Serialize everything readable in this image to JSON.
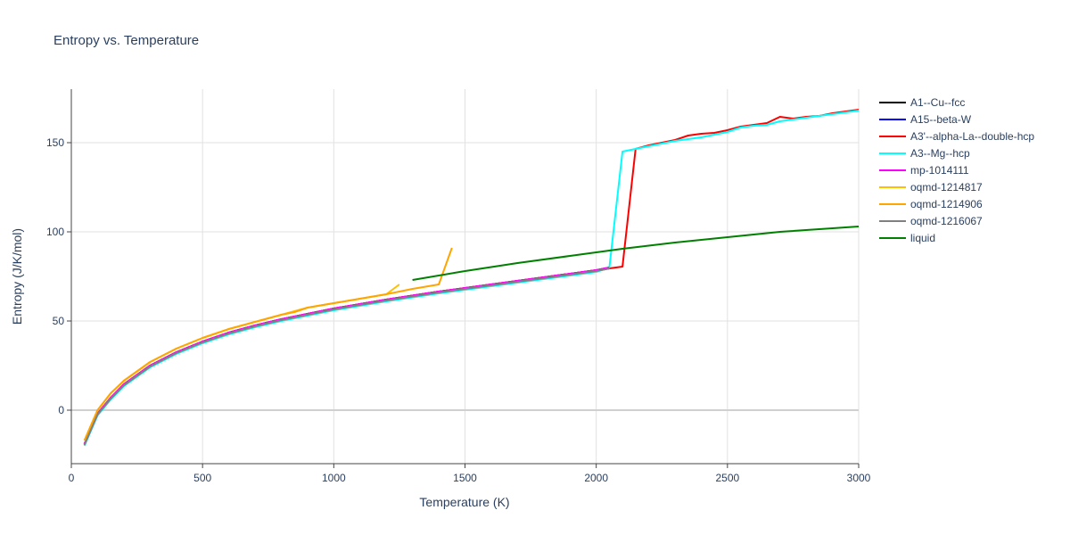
{
  "chart_data": {
    "type": "line",
    "title": "Entropy vs. Temperature",
    "xlabel": "Temperature (K)",
    "ylabel": "Entropy (J/K/mol)",
    "xlim": [
      0,
      3000
    ],
    "ylim": [
      -30,
      180
    ],
    "xticks": [
      0,
      500,
      1000,
      1500,
      2000,
      2500,
      3000
    ],
    "yticks": [
      0,
      50,
      100,
      150
    ],
    "grid": true,
    "legend_position": "right",
    "series": [
      {
        "name": "A1--Cu--fcc",
        "color": "#000000",
        "x": [
          50,
          100,
          150,
          200,
          300,
          400,
          500,
          600,
          700,
          800,
          900,
          1000,
          1200,
          1400,
          1600,
          1800,
          2000,
          2050
        ],
        "y": [
          -19,
          -2,
          7,
          14.5,
          25,
          32.5,
          38.5,
          43.5,
          47.5,
          51,
          54,
          57,
          62,
          66.5,
          70.5,
          74.5,
          78.5,
          80
        ]
      },
      {
        "name": "A15--beta-W",
        "color": "#0000ff",
        "x": [
          50,
          100,
          150,
          200,
          300,
          400,
          500,
          600,
          700,
          800,
          900,
          1000,
          1200,
          1400,
          1600,
          1800,
          2000,
          2050
        ],
        "y": [
          -19.5,
          -2.5,
          6.5,
          14,
          24.5,
          32,
          38,
          43,
          47,
          50.5,
          53.5,
          56.5,
          61.5,
          66,
          70,
          74,
          78,
          79.5
        ]
      },
      {
        "name": "A3'--alpha-La--double-hcp",
        "color": "#ff0000",
        "x": [
          50,
          100,
          150,
          200,
          300,
          400,
          500,
          600,
          700,
          800,
          900,
          1000,
          1200,
          1400,
          1600,
          1800,
          2000,
          2100,
          2150,
          2200,
          2250,
          2300,
          2350,
          2400,
          2450,
          2500,
          2550,
          2600,
          2650,
          2700,
          2750,
          2800,
          2850,
          2900,
          2950,
          3000
        ],
        "y": [
          -19,
          -2,
          7,
          14.5,
          25,
          32.5,
          38.5,
          43.5,
          47.5,
          51,
          54,
          57,
          62,
          66.5,
          70.5,
          74.5,
          78.5,
          80.5,
          146.5,
          148.5,
          150,
          151.5,
          154,
          155,
          155.5,
          157,
          159,
          160,
          161,
          164.5,
          163.5,
          164.5,
          165,
          166.5,
          167.5,
          168.5
        ]
      },
      {
        "name": "A3--Mg--hcp",
        "color": "#00ffff",
        "x": [
          50,
          100,
          150,
          200,
          300,
          400,
          500,
          600,
          700,
          800,
          900,
          1000,
          1200,
          1400,
          1600,
          1800,
          2000,
          2050,
          2100,
          2150,
          2200,
          2250,
          2300,
          2350,
          2400,
          2450,
          2500,
          2550,
          2600,
          2650,
          2700,
          2750,
          2800,
          2850,
          2900,
          2950,
          3000
        ],
        "y": [
          -20,
          -3,
          6,
          13.5,
          24,
          31.5,
          37.5,
          42.5,
          46.5,
          50,
          53,
          56,
          61,
          65.5,
          69.5,
          73.5,
          77.5,
          80,
          145,
          146.5,
          148,
          149.5,
          151,
          152,
          153,
          154.5,
          156,
          158.5,
          159.5,
          160,
          162,
          163,
          164,
          165,
          166,
          167,
          168
        ]
      },
      {
        "name": "mp-1014111",
        "color": "#ff00ff",
        "x": [
          50,
          100,
          150,
          200,
          300,
          400,
          500,
          600,
          700,
          800,
          900,
          1000,
          1200,
          1400,
          1600,
          1800,
          2000,
          2050
        ],
        "y": [
          -19,
          -2,
          7,
          14.5,
          25,
          32.5,
          38.5,
          43.5,
          47.5,
          51,
          54,
          57,
          62,
          66.5,
          70.5,
          74.5,
          78.5,
          80
        ]
      },
      {
        "name": "oqmd-1214817",
        "color": "#ffbf00",
        "x": [
          50,
          100,
          150,
          200,
          300,
          400,
          500,
          600,
          700,
          800,
          900,
          1000,
          1100,
          1200,
          1250
        ],
        "y": [
          -17,
          0,
          9.5,
          16.5,
          27,
          34.5,
          40.5,
          45.5,
          49.5,
          53.5,
          57.5,
          60,
          62.5,
          65,
          70.5
        ]
      },
      {
        "name": "oqmd-1214906",
        "color": "#ffa500",
        "x": [
          50,
          100,
          150,
          200,
          300,
          400,
          500,
          600,
          700,
          800,
          850,
          900,
          1000,
          1100,
          1200,
          1300,
          1400,
          1450
        ],
        "y": [
          -17,
          0,
          9.5,
          16.5,
          27,
          34.5,
          40.5,
          45.5,
          49.5,
          53.5,
          55,
          57.5,
          60,
          62.5,
          65,
          68,
          70.5,
          91
        ]
      },
      {
        "name": "oqmd-1216067",
        "color": "#808080",
        "x": [
          50,
          100,
          150,
          200,
          300,
          400,
          500,
          600,
          700,
          800,
          900,
          1000,
          1200,
          1400,
          1600,
          1800,
          2000,
          2050
        ],
        "y": [
          -19.5,
          -2.5,
          6.5,
          14,
          24.5,
          32,
          38,
          43,
          47,
          50.5,
          53.5,
          56.5,
          61.5,
          66,
          70,
          74,
          78,
          79.5
        ]
      },
      {
        "name": "liquid",
        "color": "#008000",
        "x": [
          1300,
          1500,
          1700,
          1900,
          2100,
          2300,
          2500,
          2700,
          2900,
          3000
        ],
        "y": [
          73,
          78,
          82.5,
          86.5,
          90.5,
          94,
          97,
          100,
          102,
          103
        ]
      }
    ]
  }
}
